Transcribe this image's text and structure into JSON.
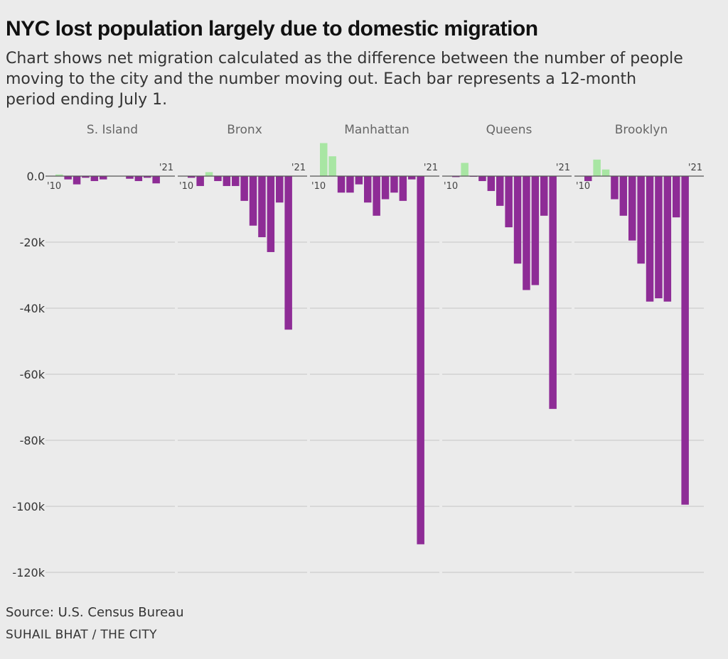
{
  "title": "NYC lost population largely due to domestic migration",
  "subtitle": "Chart shows net migration calculated as the difference between the number of people moving to the city and the number moving out. Each bar represents a 12-month period ending July 1.",
  "source": "Source: U.S. Census Bureau",
  "credit": "SUHAIL BHAT / THE CITY",
  "colors": {
    "positive": "#a8e6a3",
    "negative": "#8e2c96",
    "grid": "#c4c4c4",
    "zero": "#555555"
  },
  "chart_data": {
    "type": "bar",
    "ylim": [
      -120000,
      10000
    ],
    "yticks": [
      0,
      -20000,
      -40000,
      -60000,
      -80000,
      -100000,
      -120000
    ],
    "ytick_labels": [
      "0.0",
      "-20k",
      "-40k",
      "-60k",
      "-80k",
      "-100k",
      "-120k"
    ],
    "start_label": "'10",
    "end_label": "'21",
    "x": [
      2010,
      2011,
      2012,
      2013,
      2014,
      2015,
      2016,
      2017,
      2018,
      2019,
      2020,
      2021
    ],
    "grid": true,
    "series": [
      {
        "name": "S. Island",
        "values": [
          500,
          -1000,
          -2500,
          -500,
          -1500,
          -1000,
          0,
          0,
          -800,
          -1500,
          -500,
          -2200
        ]
      },
      {
        "name": "Bronx",
        "values": [
          -500,
          -3000,
          1200,
          -1500,
          -3000,
          -3000,
          -7500,
          -15000,
          -18500,
          -23000,
          -8000,
          -46500
        ]
      },
      {
        "name": "Manhattan",
        "values": [
          10000,
          6000,
          -5000,
          -5000,
          -2500,
          -8000,
          -12000,
          -7000,
          -5000,
          -7500,
          -1000,
          -111500
        ]
      },
      {
        "name": "Queens",
        "values": [
          -300,
          4000,
          -200,
          -1500,
          -4500,
          -9000,
          -15500,
          -26500,
          -34500,
          -33000,
          -12000,
          -70500
        ]
      },
      {
        "name": "Brooklyn",
        "values": [
          -1500,
          5000,
          2000,
          -7000,
          -12000,
          -19500,
          -26500,
          -38000,
          -37000,
          -38000,
          -12500,
          -99500
        ]
      }
    ]
  }
}
